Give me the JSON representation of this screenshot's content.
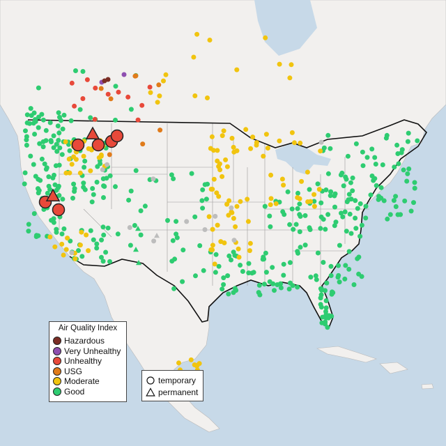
{
  "legend": {
    "title": "Air Quality Index",
    "categories": [
      {
        "label": "Hazardous",
        "color": "#7b2e25"
      },
      {
        "label": "Very Unhealthy",
        "color": "#8e4fb0"
      },
      {
        "label": "Unhealthy",
        "color": "#e8493a"
      },
      {
        "label": "USG",
        "color": "#e07b1a"
      },
      {
        "label": "Moderate",
        "color": "#f1c40f"
      },
      {
        "label": "Good",
        "color": "#2ecc71"
      }
    ]
  },
  "shape_legend": {
    "temporary_label": "temporary",
    "permanent_label": "permanent"
  },
  "colors": {
    "ocean": "#c7d9e8",
    "land": "#f2f0ee",
    "no_data": "#bdbdbd"
  }
}
